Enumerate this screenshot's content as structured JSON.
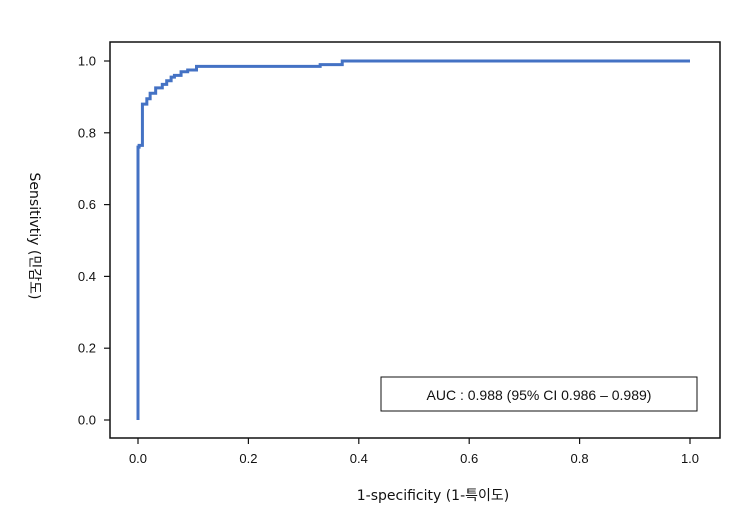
{
  "chart_data": {
    "type": "line",
    "title": "",
    "xlabel": "1-specificity (1-특이도)",
    "ylabel": "Sensitivtiy (민감도)",
    "xlim": [
      0.0,
      1.0
    ],
    "ylim": [
      0.0,
      1.0
    ],
    "xticks": [
      "0.0",
      "0.2",
      "0.4",
      "0.6",
      "0.8",
      "1.0"
    ],
    "yticks": [
      "0.0",
      "0.2",
      "0.4",
      "0.6",
      "0.8",
      "1.0"
    ],
    "grid": false,
    "legend": "none",
    "annotation": "AUC : 0.988 (95% CI 0.986 – 0.989)",
    "line_color": "#4472c4",
    "series": [
      {
        "x": [
          0.0,
          0.0,
          0.002,
          0.002,
          0.008,
          0.008,
          0.016,
          0.016,
          0.022,
          0.022,
          0.032,
          0.032,
          0.044,
          0.044,
          0.052,
          0.052,
          0.06,
          0.06,
          0.066,
          0.066,
          0.078,
          0.078,
          0.09,
          0.09,
          0.106,
          0.106,
          0.33,
          0.33,
          0.37,
          0.37,
          1.0
        ],
        "y": [
          0.0,
          0.76,
          0.76,
          0.765,
          0.765,
          0.88,
          0.88,
          0.895,
          0.895,
          0.91,
          0.91,
          0.925,
          0.925,
          0.935,
          0.935,
          0.945,
          0.945,
          0.955,
          0.955,
          0.96,
          0.96,
          0.97,
          0.97,
          0.975,
          0.975,
          0.985,
          0.985,
          0.99,
          0.99,
          1.0,
          1.0
        ]
      }
    ]
  }
}
